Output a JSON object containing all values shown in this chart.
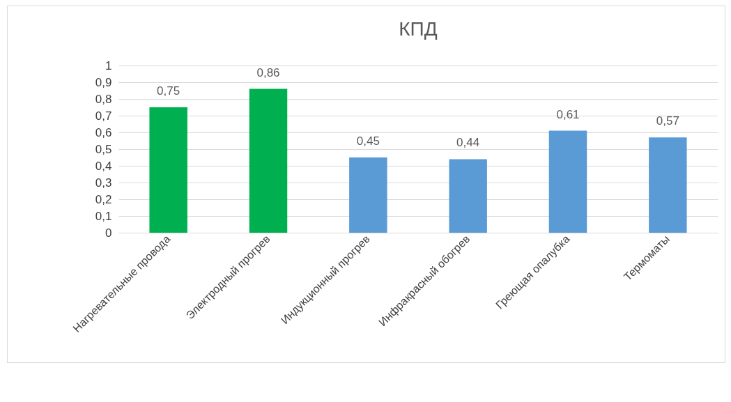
{
  "chart_data": {
    "type": "bar",
    "title": "КПД",
    "categories": [
      "Нагревательные провода",
      "Электродный прогрев",
      "Индукционный прогрев",
      "Инфракрасный обогрев",
      "Греющая опалубка",
      "Термоматы"
    ],
    "values": [
      0.75,
      0.86,
      0.45,
      0.44,
      0.61,
      0.57
    ],
    "value_labels": [
      "0,75",
      "0,86",
      "0,45",
      "0,44",
      "0,61",
      "0,57"
    ],
    "colors": [
      "#00b050",
      "#00b050",
      "#5b9bd5",
      "#5b9bd5",
      "#5b9bd5",
      "#5b9bd5"
    ],
    "ylim": [
      0,
      1
    ],
    "yticks": [
      0,
      {
        "value": 0.1,
        "label": "0,1"
      },
      {
        "value": 0.2,
        "label": "0,2"
      },
      {
        "value": 0.3,
        "label": "0,3"
      },
      {
        "value": 0.4,
        "label": "0,4"
      },
      {
        "value": 0.5,
        "label": "0,5"
      },
      {
        "value": 0.6,
        "label": "0,6"
      },
      {
        "value": 0.7,
        "label": "0,7"
      },
      {
        "value": 0.8,
        "label": "0,8"
      },
      {
        "value": 0.9,
        "label": "0,9"
      },
      1
    ],
    "grid": "y"
  }
}
